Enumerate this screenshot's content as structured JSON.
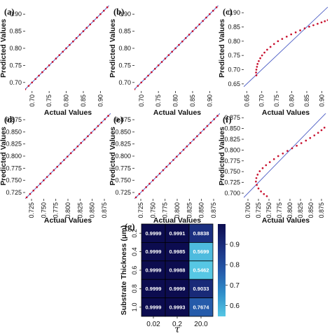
{
  "colors": {
    "ideal_line": "#4a5bc4",
    "points": "#c8102e",
    "colormap": [
      "#56c7e4",
      "#2f8ec9",
      "#2558a8",
      "#1b2f7f",
      "#0c0c4f"
    ]
  },
  "chart_data": [
    {
      "type": "scatter",
      "panel": "(a)",
      "xlabel": "Actual Values",
      "ylabel": "Predicted Values",
      "xlim": [
        0.68,
        0.93
      ],
      "ylim": [
        0.675,
        0.925
      ],
      "xticks": [
        "0.70",
        "0.75",
        "0.80",
        "0.85",
        "0.90"
      ],
      "yticks": [
        "0.70",
        "0.75",
        "0.80",
        "0.85",
        "0.90"
      ],
      "xtick_values": [
        0.7,
        0.75,
        0.8,
        0.85,
        0.9
      ],
      "ytick_values": [
        0.7,
        0.75,
        0.8,
        0.85,
        0.9
      ],
      "x": [
        0.68,
        0.69,
        0.7,
        0.71,
        0.72,
        0.73,
        0.74,
        0.75,
        0.76,
        0.77,
        0.78,
        0.79,
        0.8,
        0.81,
        0.82,
        0.83,
        0.84,
        0.85,
        0.86,
        0.87,
        0.88,
        0.89,
        0.9,
        0.91,
        0.92
      ],
      "y": [
        0.68,
        0.69,
        0.7,
        0.71,
        0.72,
        0.73,
        0.74,
        0.75,
        0.76,
        0.77,
        0.78,
        0.79,
        0.8,
        0.81,
        0.82,
        0.83,
        0.84,
        0.85,
        0.86,
        0.87,
        0.88,
        0.89,
        0.9,
        0.91,
        0.92
      ]
    },
    {
      "type": "scatter",
      "panel": "(b)",
      "xlabel": "Actual Values",
      "ylabel": "Predicted Values",
      "xlim": [
        0.68,
        0.93
      ],
      "ylim": [
        0.675,
        0.925
      ],
      "xticks": [
        "0.70",
        "0.75",
        "0.80",
        "0.85",
        "0.90"
      ],
      "yticks": [
        "0.70",
        "0.75",
        "0.80",
        "0.85",
        "0.90"
      ],
      "xtick_values": [
        0.7,
        0.75,
        0.8,
        0.85,
        0.9
      ],
      "ytick_values": [
        0.7,
        0.75,
        0.8,
        0.85,
        0.9
      ],
      "x": [
        0.68,
        0.69,
        0.7,
        0.71,
        0.72,
        0.73,
        0.74,
        0.75,
        0.76,
        0.77,
        0.78,
        0.79,
        0.8,
        0.81,
        0.82,
        0.83,
        0.84,
        0.85,
        0.86,
        0.87,
        0.88,
        0.89,
        0.9,
        0.91,
        0.92
      ],
      "y": [
        0.68,
        0.69,
        0.7,
        0.71,
        0.72,
        0.73,
        0.74,
        0.75,
        0.76,
        0.77,
        0.78,
        0.79,
        0.8,
        0.81,
        0.82,
        0.83,
        0.84,
        0.85,
        0.86,
        0.87,
        0.88,
        0.89,
        0.9,
        0.91,
        0.92
      ]
    },
    {
      "type": "scatter",
      "panel": "(c)",
      "xlabel": "Actual Values",
      "ylabel": "Predicted Values",
      "xlim": [
        0.64,
        0.92
      ],
      "ylim": [
        0.625,
        0.925
      ],
      "xticks": [
        "0.65",
        "0.70",
        "0.75",
        "0.80",
        "0.85",
        "0.90"
      ],
      "yticks": [
        "0.65",
        "0.70",
        "0.75",
        "0.80",
        "0.85",
        "0.90"
      ],
      "xtick_values": [
        0.65,
        0.7,
        0.75,
        0.8,
        0.85,
        0.9
      ],
      "ytick_values": [
        0.65,
        0.7,
        0.75,
        0.8,
        0.85,
        0.9
      ],
      "x": [
        0.682,
        0.681,
        0.682,
        0.684,
        0.686,
        0.69,
        0.695,
        0.701,
        0.709,
        0.718,
        0.729,
        0.741,
        0.754,
        0.768,
        0.783,
        0.798,
        0.813,
        0.828,
        0.843,
        0.858,
        0.872,
        0.886,
        0.899,
        0.91,
        0.92
      ],
      "y": [
        0.68,
        0.69,
        0.7,
        0.71,
        0.72,
        0.73,
        0.74,
        0.75,
        0.76,
        0.77,
        0.78,
        0.79,
        0.8,
        0.808,
        0.816,
        0.824,
        0.831,
        0.838,
        0.845,
        0.851,
        0.856,
        0.861,
        0.866,
        0.87,
        0.874
      ]
    },
    {
      "type": "scatter",
      "panel": "(d)",
      "xlabel": "Actual Values",
      "ylabel": "Predicted Values",
      "xlim": [
        0.712,
        0.888
      ],
      "ylim": [
        0.712,
        0.888
      ],
      "xticks": [
        "0.725",
        "0.750",
        "0.775",
        "0.800",
        "0.825",
        "0.850",
        "0.875"
      ],
      "yticks": [
        "0.725",
        "0.750",
        "0.775",
        "0.800",
        "0.825",
        "0.850",
        "0.875"
      ],
      "xtick_values": [
        0.725,
        0.75,
        0.775,
        0.8,
        0.825,
        0.85,
        0.875
      ],
      "ytick_values": [
        0.725,
        0.75,
        0.775,
        0.8,
        0.825,
        0.85,
        0.875
      ],
      "x": [
        0.715,
        0.722,
        0.729,
        0.736,
        0.743,
        0.75,
        0.757,
        0.764,
        0.771,
        0.778,
        0.785,
        0.792,
        0.799,
        0.806,
        0.813,
        0.82,
        0.827,
        0.834,
        0.841,
        0.848,
        0.855,
        0.862,
        0.869,
        0.876,
        0.883
      ],
      "y": [
        0.715,
        0.722,
        0.729,
        0.736,
        0.743,
        0.75,
        0.757,
        0.764,
        0.771,
        0.778,
        0.785,
        0.792,
        0.799,
        0.806,
        0.813,
        0.82,
        0.827,
        0.834,
        0.841,
        0.848,
        0.855,
        0.862,
        0.869,
        0.876,
        0.883
      ]
    },
    {
      "type": "scatter",
      "panel": "(e)",
      "xlabel": "Actual Values",
      "ylabel": "Predicted Values",
      "xlim": [
        0.712,
        0.888
      ],
      "ylim": [
        0.712,
        0.888
      ],
      "xticks": [
        "0.725",
        "0.750",
        "0.775",
        "0.800",
        "0.825",
        "0.850",
        "0.875"
      ],
      "yticks": [
        "0.725",
        "0.750",
        "0.775",
        "0.800",
        "0.825",
        "0.850",
        "0.875"
      ],
      "xtick_values": [
        0.725,
        0.75,
        0.775,
        0.8,
        0.825,
        0.85,
        0.875
      ],
      "ytick_values": [
        0.725,
        0.75,
        0.775,
        0.8,
        0.825,
        0.85,
        0.875
      ],
      "x": [
        0.715,
        0.722,
        0.729,
        0.736,
        0.743,
        0.75,
        0.757,
        0.764,
        0.771,
        0.778,
        0.785,
        0.792,
        0.799,
        0.806,
        0.813,
        0.82,
        0.827,
        0.834,
        0.841,
        0.848,
        0.855,
        0.862,
        0.869,
        0.876,
        0.883
      ],
      "y": [
        0.715,
        0.722,
        0.729,
        0.736,
        0.743,
        0.75,
        0.757,
        0.764,
        0.771,
        0.778,
        0.785,
        0.792,
        0.799,
        0.806,
        0.813,
        0.82,
        0.827,
        0.834,
        0.841,
        0.848,
        0.855,
        0.862,
        0.869,
        0.876,
        0.883
      ]
    },
    {
      "type": "scatter",
      "panel": "(f)",
      "xlabel": "Actual Values",
      "ylabel": "Predicted Values",
      "xlim": [
        0.69,
        0.89
      ],
      "ylim": [
        0.687,
        0.885
      ],
      "xticks": [
        "0.700",
        "0.725",
        "0.750",
        "0.775",
        "0.800",
        "0.825",
        "0.850",
        "0.875"
      ],
      "yticks": [
        "0.700",
        "0.725",
        "0.750",
        "0.775",
        "0.800",
        "0.825",
        "0.850",
        "0.875"
      ],
      "xtick_values": [
        0.7,
        0.725,
        0.75,
        0.775,
        0.8,
        0.825,
        0.85,
        0.875
      ],
      "ytick_values": [
        0.7,
        0.725,
        0.75,
        0.775,
        0.8,
        0.825,
        0.85,
        0.875
      ],
      "x": [
        0.745,
        0.738,
        0.731,
        0.725,
        0.721,
        0.719,
        0.72,
        0.723,
        0.728,
        0.735,
        0.743,
        0.752,
        0.762,
        0.772,
        0.783,
        0.794,
        0.805,
        0.816,
        0.827,
        0.838,
        0.848,
        0.858,
        0.867,
        0.875,
        0.882
      ],
      "y": [
        0.693,
        0.698,
        0.704,
        0.711,
        0.719,
        0.727,
        0.735,
        0.743,
        0.751,
        0.758,
        0.765,
        0.772,
        0.779,
        0.786,
        0.792,
        0.798,
        0.804,
        0.81,
        0.816,
        0.822,
        0.828,
        0.834,
        0.84,
        0.846,
        0.852
      ]
    },
    {
      "type": "heatmap",
      "panel": "(g)",
      "xlabel": "τ",
      "ylabel": "Substrate Thickness (μm)",
      "x_categories": [
        "0.02",
        "0.2",
        "20.0"
      ],
      "y_categories": [
        "0.2",
        "0.4",
        "0.6",
        "0.8",
        "1.0"
      ],
      "values": [
        [
          0.9999,
          0.9991,
          0.8838
        ],
        [
          0.9999,
          0.9985,
          0.5699
        ],
        [
          0.9999,
          0.9988,
          0.5462
        ],
        [
          0.9999,
          0.9999,
          0.9033
        ],
        [
          0.9999,
          0.9993,
          0.7674
        ]
      ],
      "cell_labels": [
        [
          "0.9999",
          "0.9991",
          "0.8838"
        ],
        [
          "0.9999",
          "0.9985",
          "0.5699"
        ],
        [
          "0.9999",
          "0.9988",
          "0.5462"
        ],
        [
          "0.9999",
          "0.9999",
          "0.9033"
        ],
        [
          "0.9999",
          "0.9993",
          "0.7674"
        ]
      ],
      "colorbar_range": [
        0.5462,
        0.9999
      ],
      "colorbar_ticks": [
        "0.6",
        "0.7",
        "0.8",
        "0.9"
      ],
      "colorbar_tick_values": [
        0.6,
        0.7,
        0.8,
        0.9
      ]
    }
  ]
}
